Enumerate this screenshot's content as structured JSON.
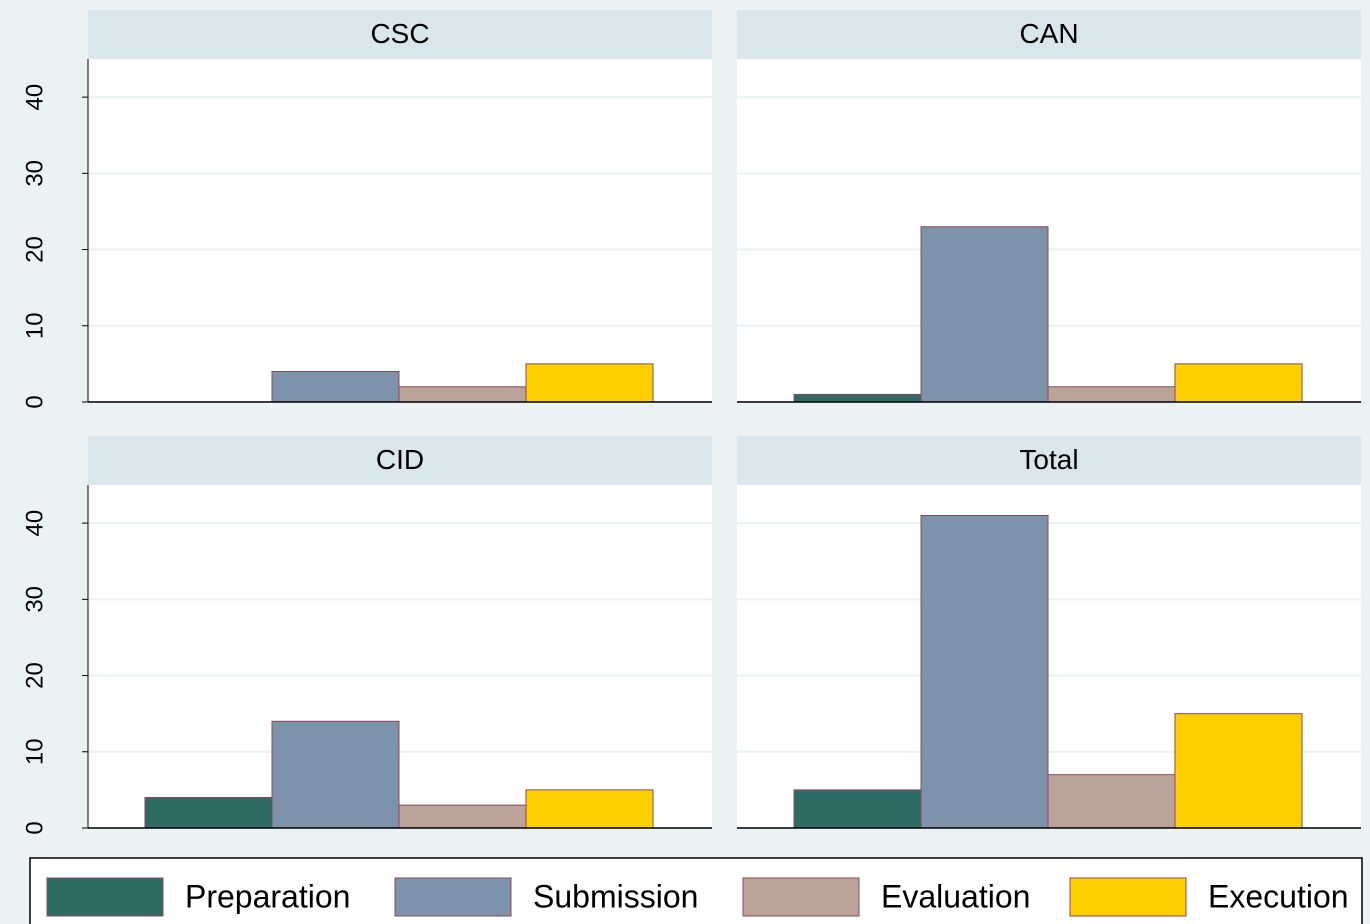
{
  "chart_data": {
    "type": "bar",
    "panels": [
      "CSC",
      "CAN",
      "CID",
      "Total"
    ],
    "series": [
      {
        "name": "Preparation",
        "color": "#2e6b64",
        "values": [
          0,
          1,
          4,
          5
        ]
      },
      {
        "name": "Submission",
        "color": "#7d93ab",
        "values": [
          4,
          23,
          14,
          41
        ]
      },
      {
        "name": "Evaluation",
        "color": "#bca39a",
        "values": [
          2,
          2,
          3,
          7
        ]
      },
      {
        "name": "Execution",
        "color": "#ffcf00",
        "values": [
          5,
          5,
          5,
          15
        ]
      }
    ],
    "ylim": [
      0,
      45
    ],
    "yticks": [
      0,
      10,
      20,
      30,
      40
    ],
    "grid": true,
    "legend": "bottom"
  }
}
